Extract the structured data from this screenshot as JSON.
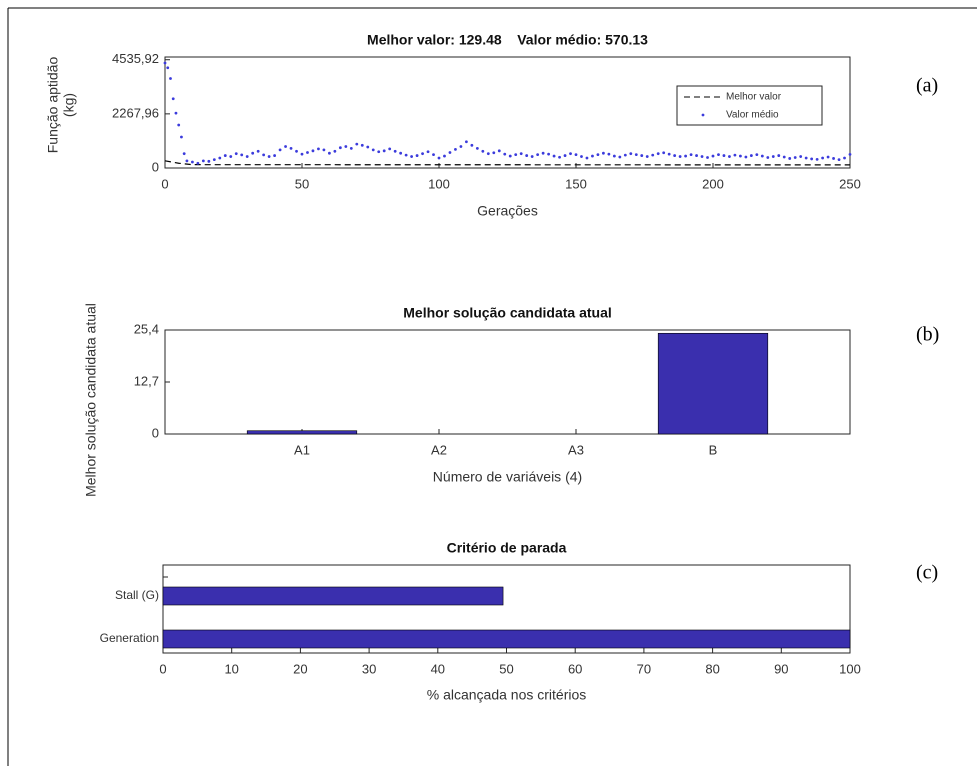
{
  "chart_data": [
    {
      "type": "scatter",
      "panel_label": "(a)",
      "title": "Melhor valor: 129.48    Valor médio: 570.13",
      "xlabel": "Gerações",
      "ylabel": [
        "Função aptidão",
        "(kg)"
      ],
      "xlim": [
        0,
        250
      ],
      "xticks": [
        0,
        50,
        100,
        150,
        200,
        250
      ],
      "ylim": [
        0,
        4650
      ],
      "yticks": [
        0,
        {
          "value": 2267.96,
          "label": "2267,96"
        },
        {
          "value": 4535.92,
          "label": "4535,92"
        }
      ],
      "legend": "northeast",
      "series": [
        {
          "name": "Melhor valor",
          "color": "#000000",
          "style": "dashed",
          "x": [
            0,
            5,
            10,
            250
          ],
          "values": [
            300,
            200,
            140,
            129.48
          ]
        },
        {
          "name": "Valor médio",
          "color": "#3b3bdc",
          "style": "dots",
          "x": [
            0,
            1,
            2,
            3,
            4,
            5,
            6,
            7,
            8,
            10,
            12,
            14,
            16,
            18,
            20,
            22,
            24,
            26,
            28,
            30,
            32,
            34,
            36,
            38,
            40,
            42,
            44,
            46,
            48,
            50,
            52,
            54,
            56,
            58,
            60,
            62,
            64,
            66,
            68,
            70,
            72,
            74,
            76,
            78,
            80,
            82,
            84,
            86,
            88,
            90,
            92,
            94,
            96,
            98,
            100,
            102,
            104,
            106,
            108,
            110,
            112,
            114,
            116,
            118,
            120,
            122,
            124,
            126,
            128,
            130,
            132,
            134,
            136,
            138,
            140,
            142,
            144,
            146,
            148,
            150,
            152,
            154,
            156,
            158,
            160,
            162,
            164,
            166,
            168,
            170,
            172,
            174,
            176,
            178,
            180,
            182,
            184,
            186,
            188,
            190,
            192,
            194,
            196,
            198,
            200,
            202,
            204,
            206,
            208,
            210,
            212,
            214,
            216,
            218,
            220,
            222,
            224,
            226,
            228,
            230,
            232,
            234,
            236,
            238,
            240,
            242,
            244,
            246,
            248,
            250
          ],
          "values": [
            4400,
            4200,
            3750,
            2900,
            2300,
            1800,
            1300,
            600,
            300,
            250,
            200,
            300,
            280,
            350,
            420,
            520,
            480,
            600,
            550,
            480,
            620,
            700,
            550,
            480,
            520,
            760,
            900,
            820,
            700,
            580,
            650,
            720,
            800,
            760,
            620,
            700,
            850,
            900,
            820,
            1000,
            950,
            880,
            760,
            680,
            720,
            800,
            700,
            620,
            540,
            480,
            520,
            600,
            680,
            560,
            420,
            500,
            650,
            780,
            900,
            1100,
            950,
            820,
            700,
            600,
            640,
            720,
            580,
            500,
            560,
            600,
            520,
            480,
            560,
            620,
            580,
            500,
            450,
            520,
            600,
            560,
            480,
            420,
            500,
            560,
            620,
            580,
            500,
            460,
            540,
            600,
            560,
            520,
            480,
            540,
            600,
            640,
            580,
            520,
            480,
            500,
            560,
            520,
            480,
            440,
            500,
            560,
            520,
            480,
            540,
            500,
            460,
            520,
            560,
            500,
            440,
            480,
            520,
            460,
            400,
            440,
            480,
            420,
            380,
            360,
            420,
            460,
            400,
            350,
            420,
            570.13
          ]
        }
      ]
    },
    {
      "type": "bar",
      "panel_label": "(b)",
      "title": "Melhor solução candidata atual",
      "xlabel": "Número de variáveis (4)",
      "ylabel": "Melhor solução candidata atual",
      "categories": [
        "A1",
        "A2",
        "A3",
        "B"
      ],
      "values": [
        0.8,
        0,
        0,
        24.6
      ],
      "color": "#3a2fae",
      "ylim": [
        0,
        25.4
      ],
      "yticks": [
        0,
        {
          "value": 12.7,
          "label": "12,7"
        },
        {
          "value": 25.4,
          "label": "25,4"
        }
      ]
    },
    {
      "type": "hbar",
      "panel_label": "(c)",
      "title": "Critério de parada",
      "xlabel": "% alcançada nos critérios",
      "categories": [
        "Generation",
        "Stall (G)"
      ],
      "values": [
        100,
        49.5
      ],
      "color": "#3a2fae",
      "xlim": [
        0,
        100
      ],
      "xticks": [
        0,
        10,
        20,
        30,
        40,
        50,
        60,
        70,
        80,
        90,
        100
      ]
    }
  ]
}
